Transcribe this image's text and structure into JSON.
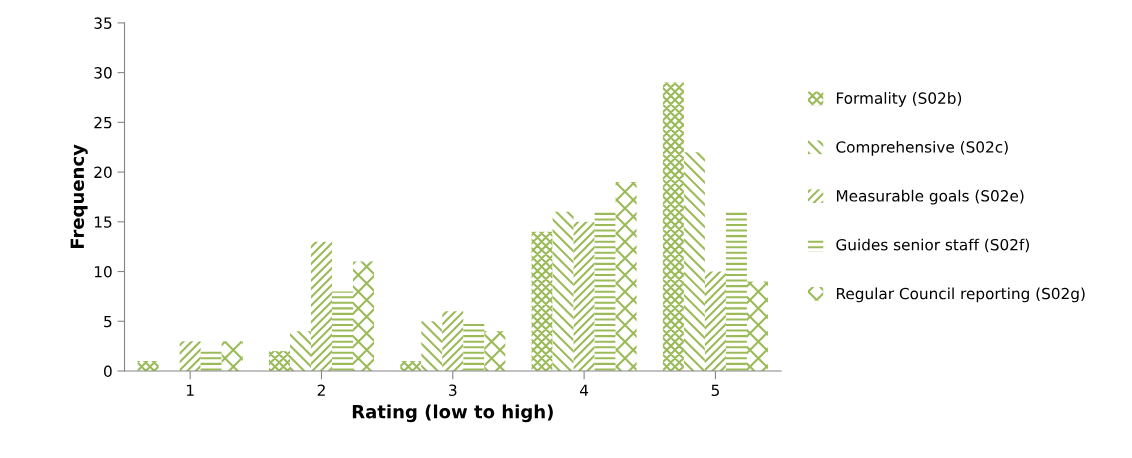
{
  "chart_data": {
    "type": "bar",
    "xlabel": "Rating (low to high)",
    "ylabel": "Frequency",
    "categories": [
      "1",
      "2",
      "3",
      "4",
      "5"
    ],
    "series": [
      {
        "name": "Formality (S02b)",
        "color": "#9bbb59",
        "values": [
          1,
          2,
          1,
          14,
          29
        ]
      },
      {
        "name": "Comprehensive (S02c)",
        "color": "#9bbb59",
        "values": [
          0,
          4,
          5,
          16,
          22
        ]
      },
      {
        "name": "Measurable goals (S02e)",
        "color": "#9bbb59",
        "values": [
          3,
          13,
          6,
          15,
          10
        ]
      },
      {
        "name": "Guides senior staff (S02f)",
        "color": "#9bbb59",
        "values": [
          2,
          8,
          5,
          16,
          16
        ]
      },
      {
        "name": "Regular Council reporting (S02g)",
        "color": "#9bbb59",
        "values": [
          3,
          11,
          4,
          19,
          9
        ]
      }
    ],
    "ylim": [
      0,
      35
    ],
    "yticks": [
      0,
      5,
      10,
      15,
      20,
      25,
      30,
      35
    ],
    "grid": false,
    "legend": "right"
  }
}
